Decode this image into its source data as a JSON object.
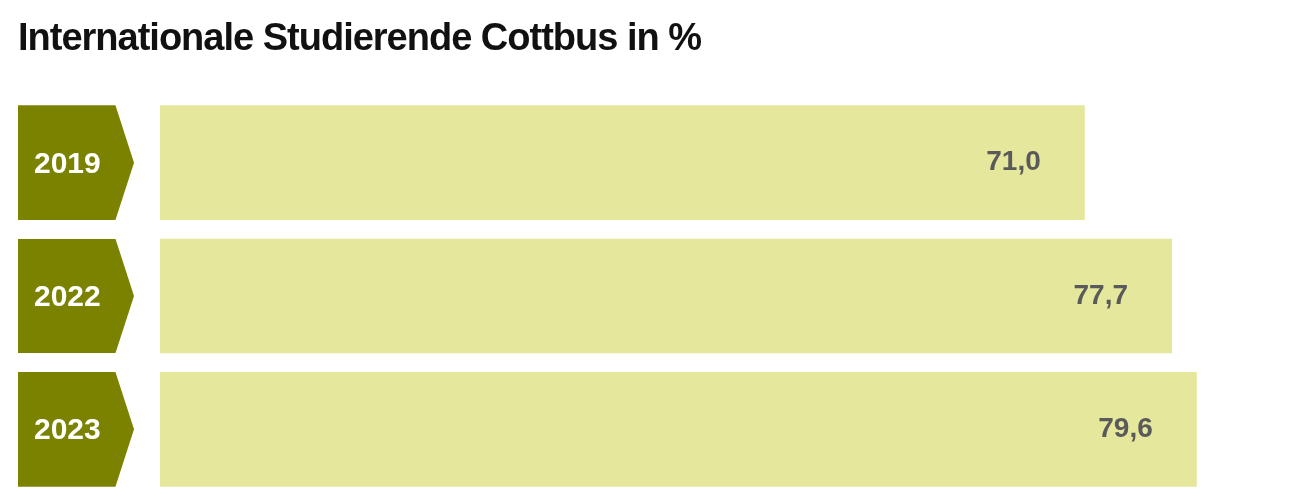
{
  "chart_data": {
    "type": "bar",
    "orientation": "horizontal",
    "title": "Internationale Studierende Cottbus in %",
    "categories": [
      "2019",
      "2022",
      "2023"
    ],
    "values": [
      71.0,
      77.7,
      79.6
    ],
    "color": "#e5e89c",
    "value_labels": [
      "71,0",
      "77,7",
      "79,6"
    ],
    "tick_labels": "y"
  }
}
